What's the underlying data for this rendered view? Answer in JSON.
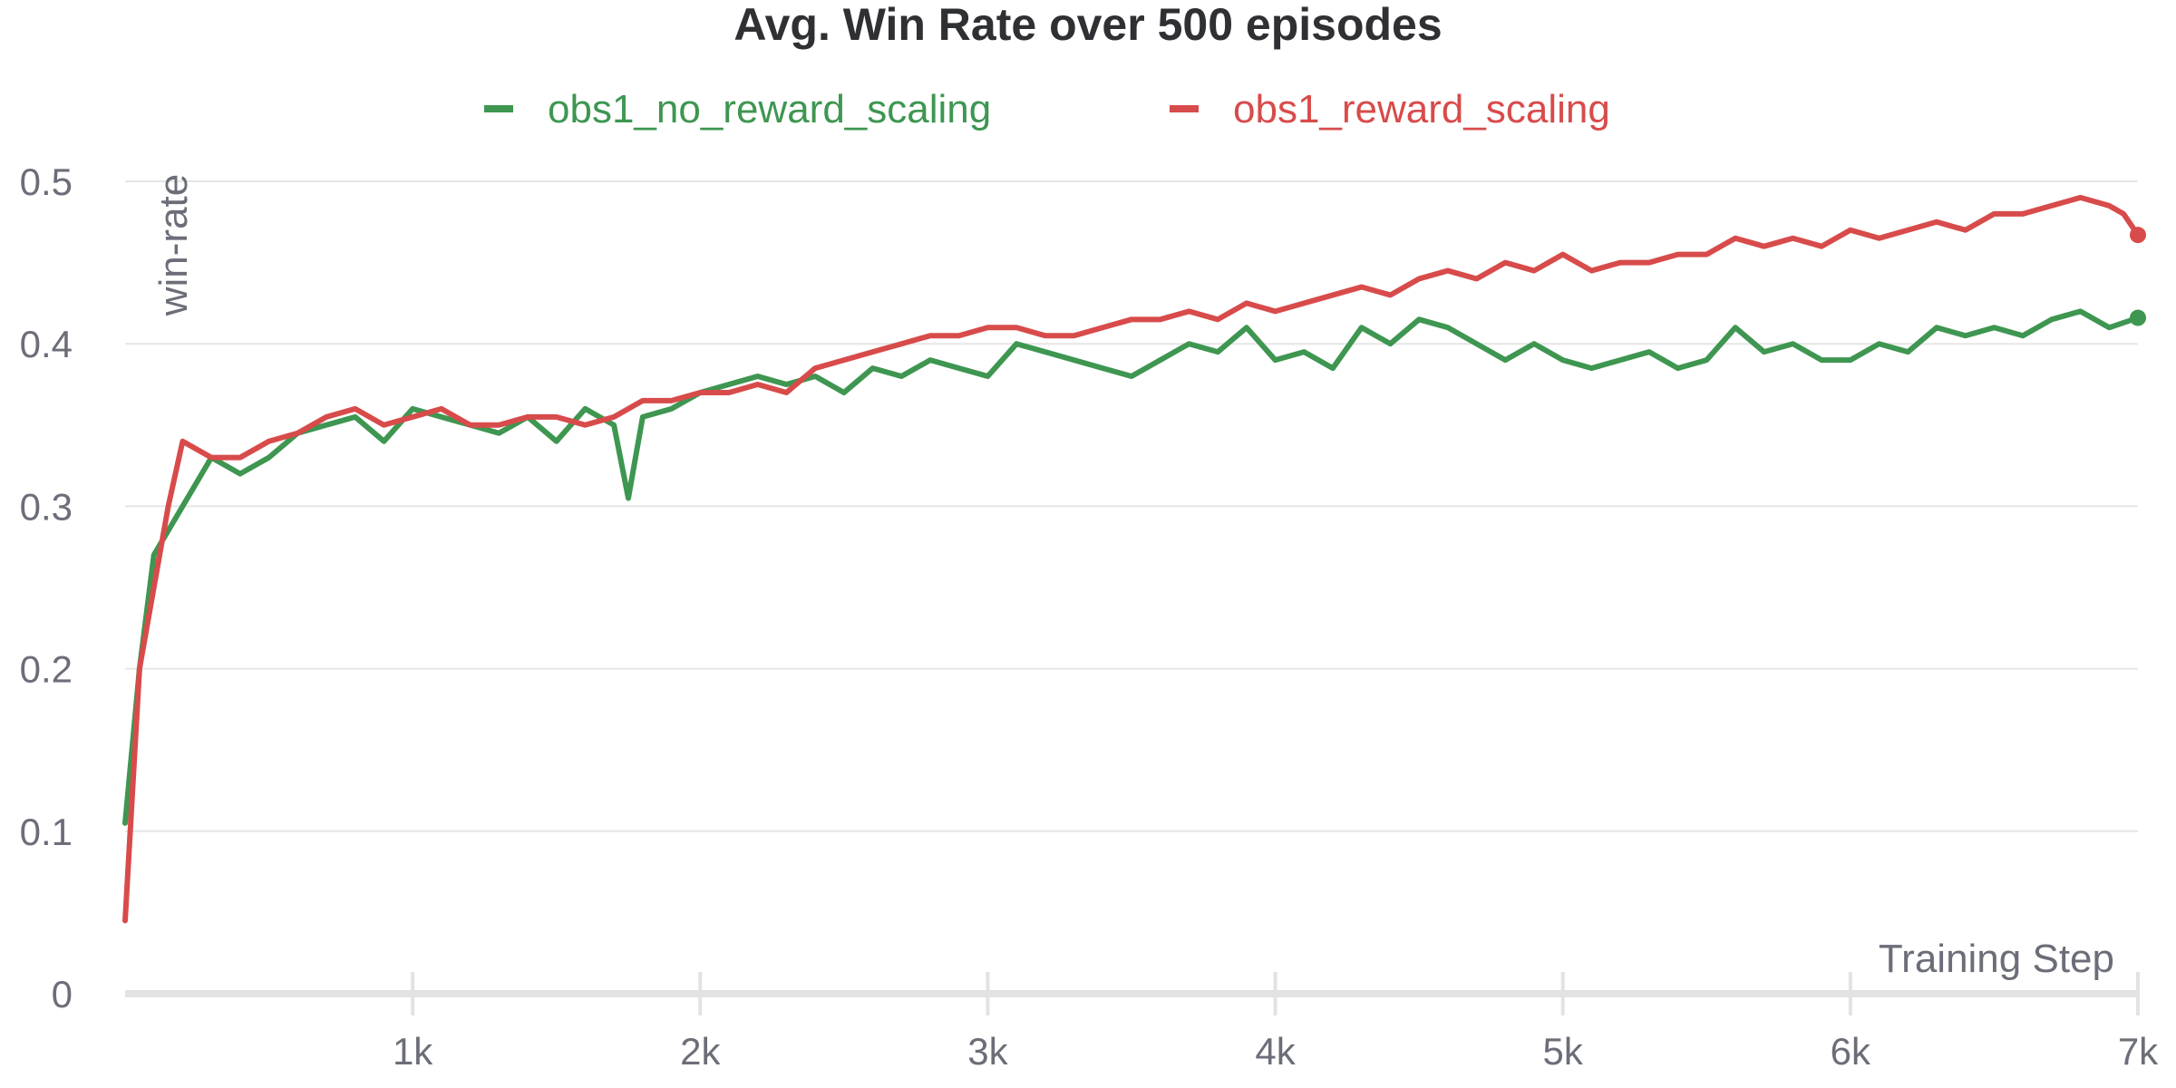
{
  "chart_data": {
    "type": "line",
    "title": "Avg. Win Rate over 500 episodes",
    "xlabel": "Training Step",
    "ylabel": "win-rate",
    "xlim": [
      0,
      7000
    ],
    "ylim": [
      0,
      0.53
    ],
    "x_ticks": [
      1000,
      2000,
      3000,
      4000,
      5000,
      6000,
      7000
    ],
    "x_tick_labels": [
      "1k",
      "2k",
      "3k",
      "4k",
      "5k",
      "6k",
      "7k"
    ],
    "y_ticks": [
      0,
      0.1,
      0.2,
      0.3,
      0.4,
      0.5
    ],
    "y_tick_labels": [
      "0",
      "0.1",
      "0.2",
      "0.3",
      "0.4",
      "0.5"
    ],
    "grid": true,
    "legend_position": "top-center",
    "series": [
      {
        "name": "obs1_no_reward_scaling",
        "color": "#3e9651",
        "x": [
          0,
          50,
          100,
          200,
          300,
          400,
          500,
          600,
          700,
          800,
          900,
          1000,
          1100,
          1200,
          1300,
          1400,
          1500,
          1600,
          1700,
          1750,
          1800,
          1900,
          2000,
          2100,
          2200,
          2300,
          2400,
          2500,
          2600,
          2700,
          2800,
          2900,
          3000,
          3100,
          3200,
          3300,
          3400,
          3500,
          3600,
          3700,
          3800,
          3900,
          4000,
          4100,
          4200,
          4300,
          4400,
          4500,
          4600,
          4700,
          4800,
          4900,
          5000,
          5100,
          5200,
          5300,
          5400,
          5500,
          5600,
          5700,
          5800,
          5900,
          6000,
          6100,
          6200,
          6300,
          6400,
          6500,
          6600,
          6700,
          6800,
          6900,
          7000
        ],
        "y": [
          0.105,
          0.2,
          0.27,
          0.3,
          0.33,
          0.32,
          0.33,
          0.345,
          0.35,
          0.355,
          0.34,
          0.36,
          0.355,
          0.35,
          0.345,
          0.355,
          0.34,
          0.36,
          0.35,
          0.305,
          0.355,
          0.36,
          0.37,
          0.375,
          0.38,
          0.375,
          0.38,
          0.37,
          0.385,
          0.38,
          0.39,
          0.385,
          0.38,
          0.4,
          0.395,
          0.39,
          0.385,
          0.38,
          0.39,
          0.4,
          0.395,
          0.41,
          0.39,
          0.395,
          0.385,
          0.41,
          0.4,
          0.415,
          0.41,
          0.4,
          0.39,
          0.4,
          0.39,
          0.385,
          0.39,
          0.395,
          0.385,
          0.39,
          0.41,
          0.395,
          0.4,
          0.39,
          0.39,
          0.4,
          0.395,
          0.41,
          0.405,
          0.41,
          0.405,
          0.415,
          0.42,
          0.41,
          0.416
        ]
      },
      {
        "name": "obs1_reward_scaling",
        "color": "#d84b4b",
        "x": [
          0,
          50,
          100,
          150,
          200,
          300,
          400,
          500,
          600,
          700,
          800,
          900,
          1000,
          1100,
          1200,
          1300,
          1400,
          1500,
          1600,
          1700,
          1800,
          1900,
          2000,
          2100,
          2200,
          2300,
          2400,
          2500,
          2600,
          2700,
          2800,
          2900,
          3000,
          3100,
          3200,
          3300,
          3400,
          3500,
          3600,
          3700,
          3800,
          3900,
          4000,
          4100,
          4200,
          4300,
          4400,
          4500,
          4600,
          4700,
          4800,
          4900,
          5000,
          5100,
          5200,
          5300,
          5400,
          5500,
          5600,
          5700,
          5800,
          5900,
          6000,
          6100,
          6200,
          6300,
          6400,
          6500,
          6600,
          6700,
          6800,
          6900,
          6950,
          7000
        ],
        "y": [
          0.045,
          0.2,
          0.25,
          0.3,
          0.34,
          0.33,
          0.33,
          0.34,
          0.345,
          0.355,
          0.36,
          0.35,
          0.355,
          0.36,
          0.35,
          0.35,
          0.355,
          0.355,
          0.35,
          0.355,
          0.365,
          0.365,
          0.37,
          0.37,
          0.375,
          0.37,
          0.385,
          0.39,
          0.395,
          0.4,
          0.405,
          0.405,
          0.41,
          0.41,
          0.405,
          0.405,
          0.41,
          0.415,
          0.415,
          0.42,
          0.415,
          0.425,
          0.42,
          0.425,
          0.43,
          0.435,
          0.43,
          0.44,
          0.445,
          0.44,
          0.45,
          0.445,
          0.455,
          0.445,
          0.45,
          0.45,
          0.455,
          0.455,
          0.465,
          0.46,
          0.465,
          0.46,
          0.47,
          0.465,
          0.47,
          0.475,
          0.47,
          0.48,
          0.48,
          0.485,
          0.49,
          0.485,
          0.48,
          0.467
        ]
      }
    ]
  }
}
